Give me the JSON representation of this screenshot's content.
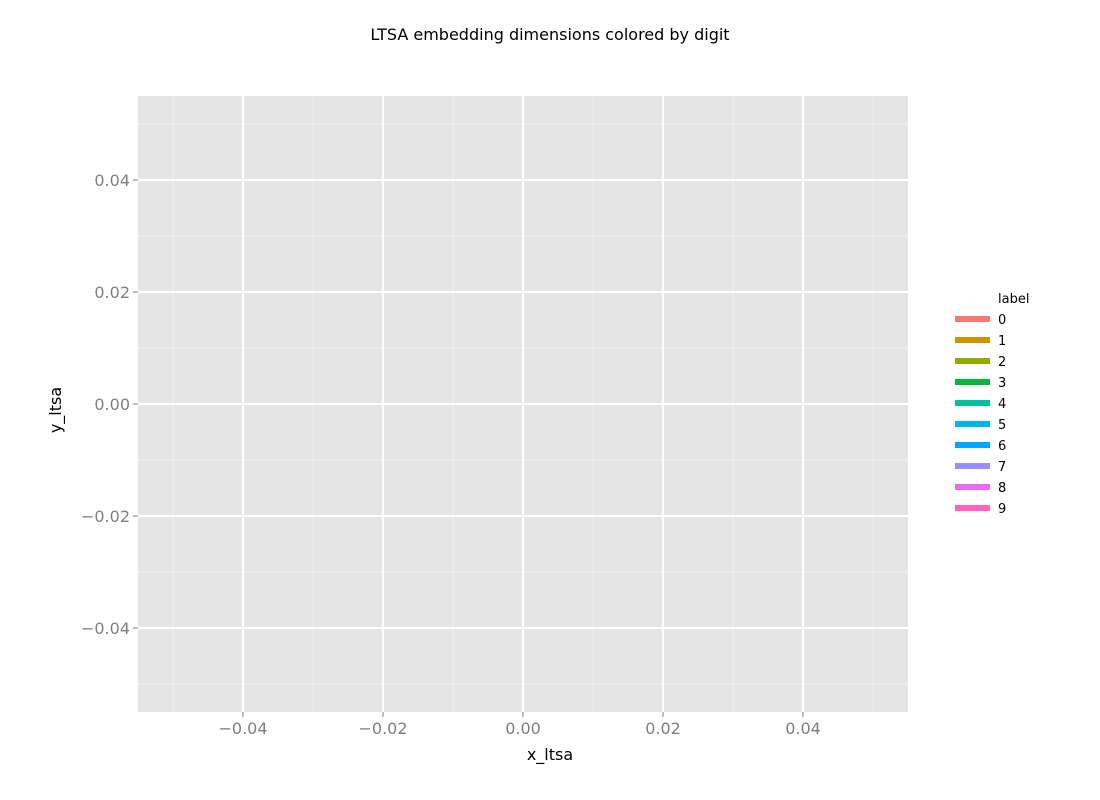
{
  "chart_data": {
    "type": "line",
    "title": "LTSA embedding dimensions colored by digit",
    "xlabel": "x_ltsa",
    "ylabel": "y_ltsa",
    "xlim": [
      -0.055,
      0.055
    ],
    "ylim": [
      -0.055,
      0.055
    ],
    "x_ticks": [
      -0.04,
      -0.02,
      0.0,
      0.02,
      0.04
    ],
    "x_tick_labels": [
      "−0.04",
      "−0.02",
      "0.00",
      "0.02",
      "0.04"
    ],
    "y_ticks": [
      -0.04,
      -0.02,
      0.0,
      0.02,
      0.04
    ],
    "y_tick_labels": [
      "−0.04",
      "−0.02",
      "0.00",
      "0.02",
      "0.04"
    ],
    "x_minor_ticks": [
      -0.05,
      -0.03,
      -0.01,
      0.01,
      0.03,
      0.05
    ],
    "y_minor_ticks": [
      -0.05,
      -0.03,
      -0.01,
      0.01,
      0.03,
      0.05
    ],
    "grid": true,
    "legend_position": "right",
    "legend_title": "label",
    "series": [
      {
        "name": "0",
        "color": "#F8766D",
        "values": []
      },
      {
        "name": "1",
        "color": "#D39200",
        "values": []
      },
      {
        "name": "2",
        "color": "#93AA00",
        "values": []
      },
      {
        "name": "3",
        "color": "#00BA38",
        "values": []
      },
      {
        "name": "4",
        "color": "#00C19F",
        "values": []
      },
      {
        "name": "5",
        "color": "#00B9E3",
        "values": []
      },
      {
        "name": "6",
        "color": "#00A5FF",
        "values": []
      },
      {
        "name": "7",
        "color": "#9590FF",
        "values": []
      },
      {
        "name": "8",
        "color": "#E76BF3",
        "values": []
      },
      {
        "name": "9",
        "color": "#FF62BC",
        "values": []
      }
    ]
  }
}
